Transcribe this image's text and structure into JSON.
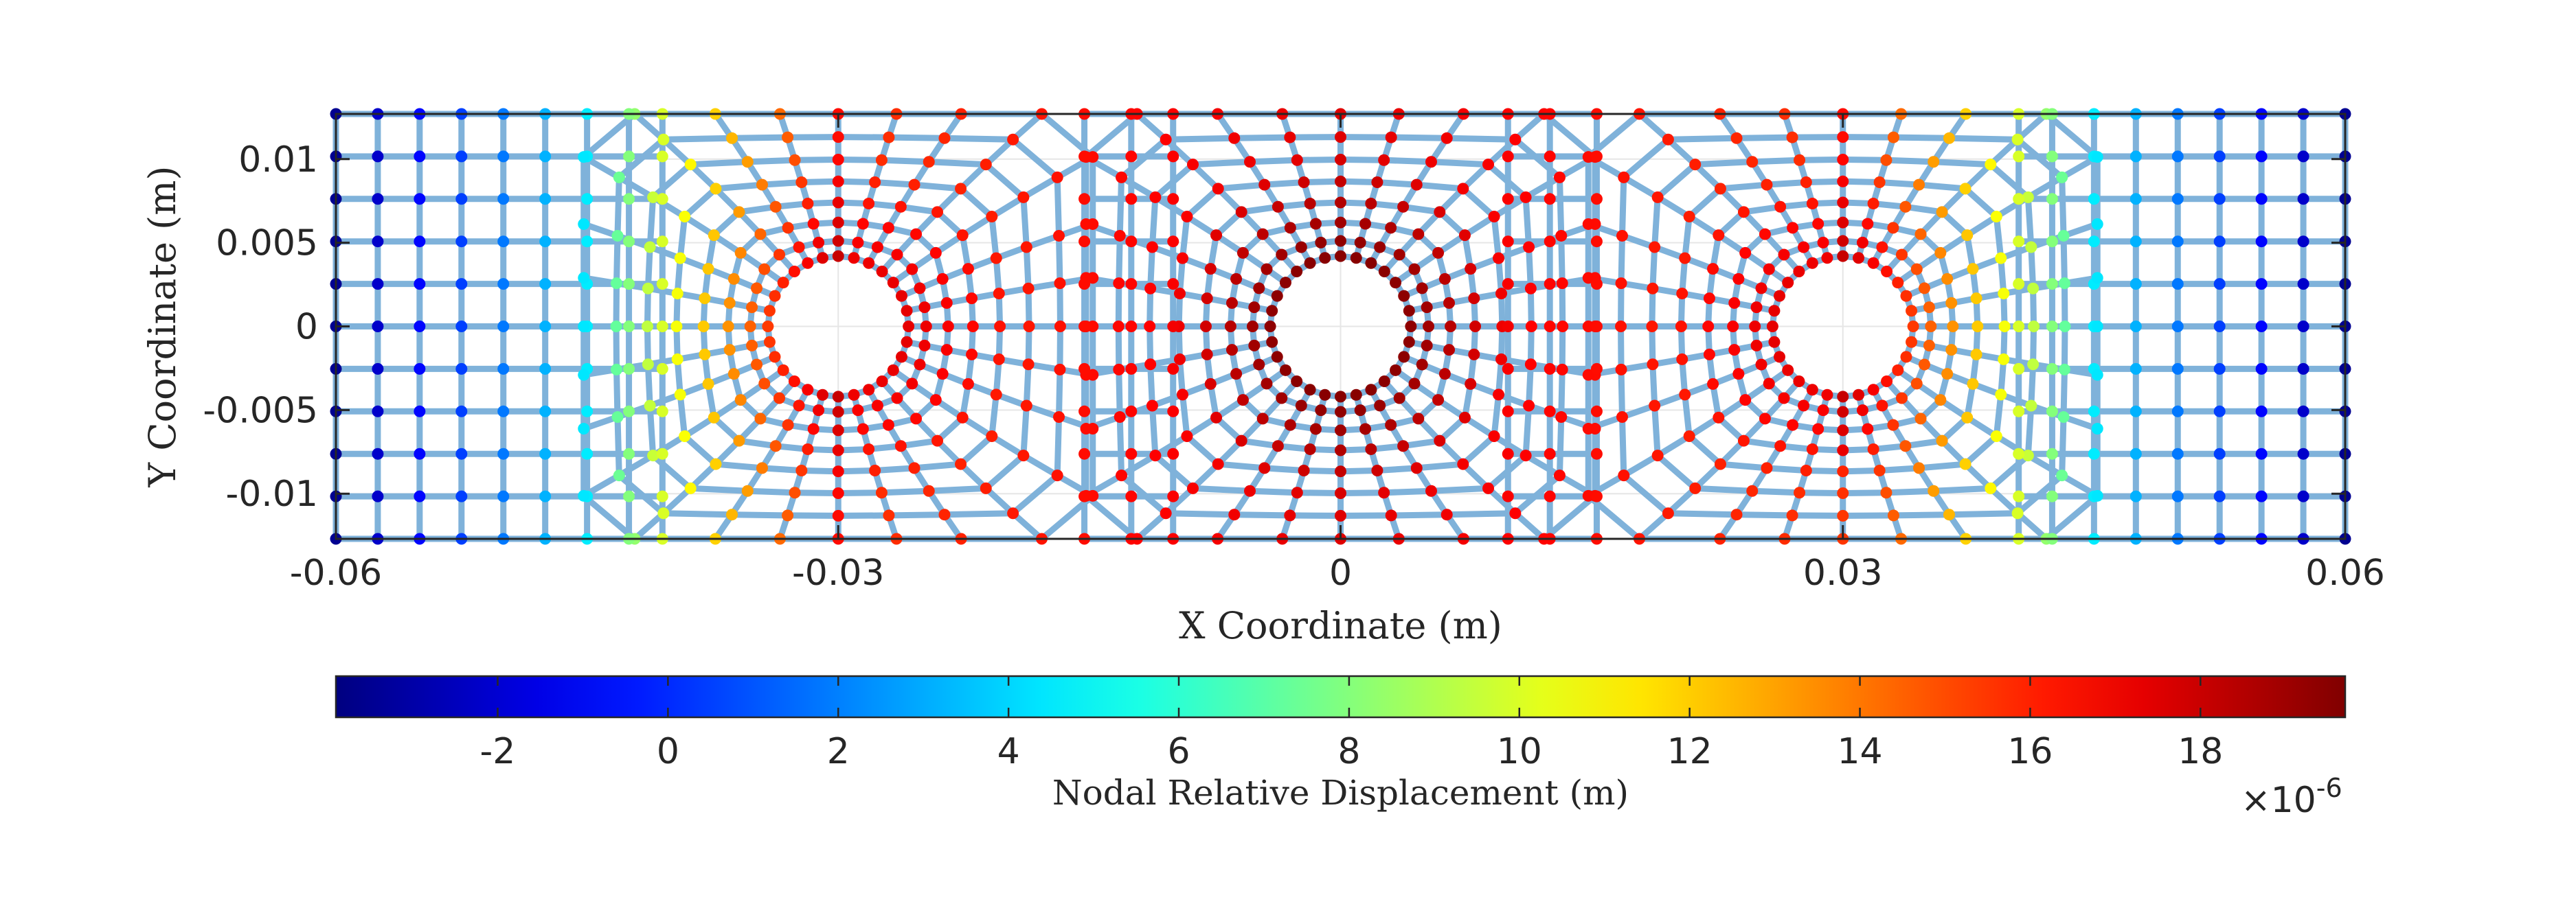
{
  "chart_data": {
    "type": "scatter",
    "subtype": "finite-element mesh with nodal colormap",
    "title": "",
    "xlabel": "X Coordinate (m)",
    "ylabel": "Y Coordinate (m)",
    "xlim": [
      -0.06,
      0.06
    ],
    "ylim": [
      -0.0127,
      0.0127
    ],
    "xticks": [
      -0.06,
      -0.03,
      0,
      0.03,
      0.06
    ],
    "xtick_labels": [
      "-0.06",
      "-0.03",
      "0",
      "0.03",
      "0.06"
    ],
    "yticks": [
      0.01,
      0.005,
      0,
      -0.005,
      -0.01
    ],
    "ytick_labels": [
      "0.01",
      "0.005",
      "0",
      "-0.005",
      "-0.01"
    ],
    "grid": true,
    "holes": [
      {
        "cx": -0.03,
        "cy": 0,
        "r": 0.0042
      },
      {
        "cx": 0,
        "cy": 0,
        "r": 0.0042
      },
      {
        "cx": 0.03,
        "cy": 0,
        "r": 0.0042
      }
    ],
    "mesh_color": "#7fb2da",
    "colorbar": {
      "label": "Nodal Relative Displacement (m)",
      "colormap": "jet",
      "range": [
        -3.9,
        19.7
      ],
      "ticks": [
        -2,
        0,
        2,
        4,
        6,
        8,
        10,
        12,
        14,
        16,
        18
      ],
      "tick_labels": [
        "-2",
        "0",
        "2",
        "4",
        "6",
        "8",
        "10",
        "12",
        "14",
        "16",
        "18"
      ],
      "multiplier_base": "×10",
      "multiplier_exponent": "-6"
    }
  }
}
